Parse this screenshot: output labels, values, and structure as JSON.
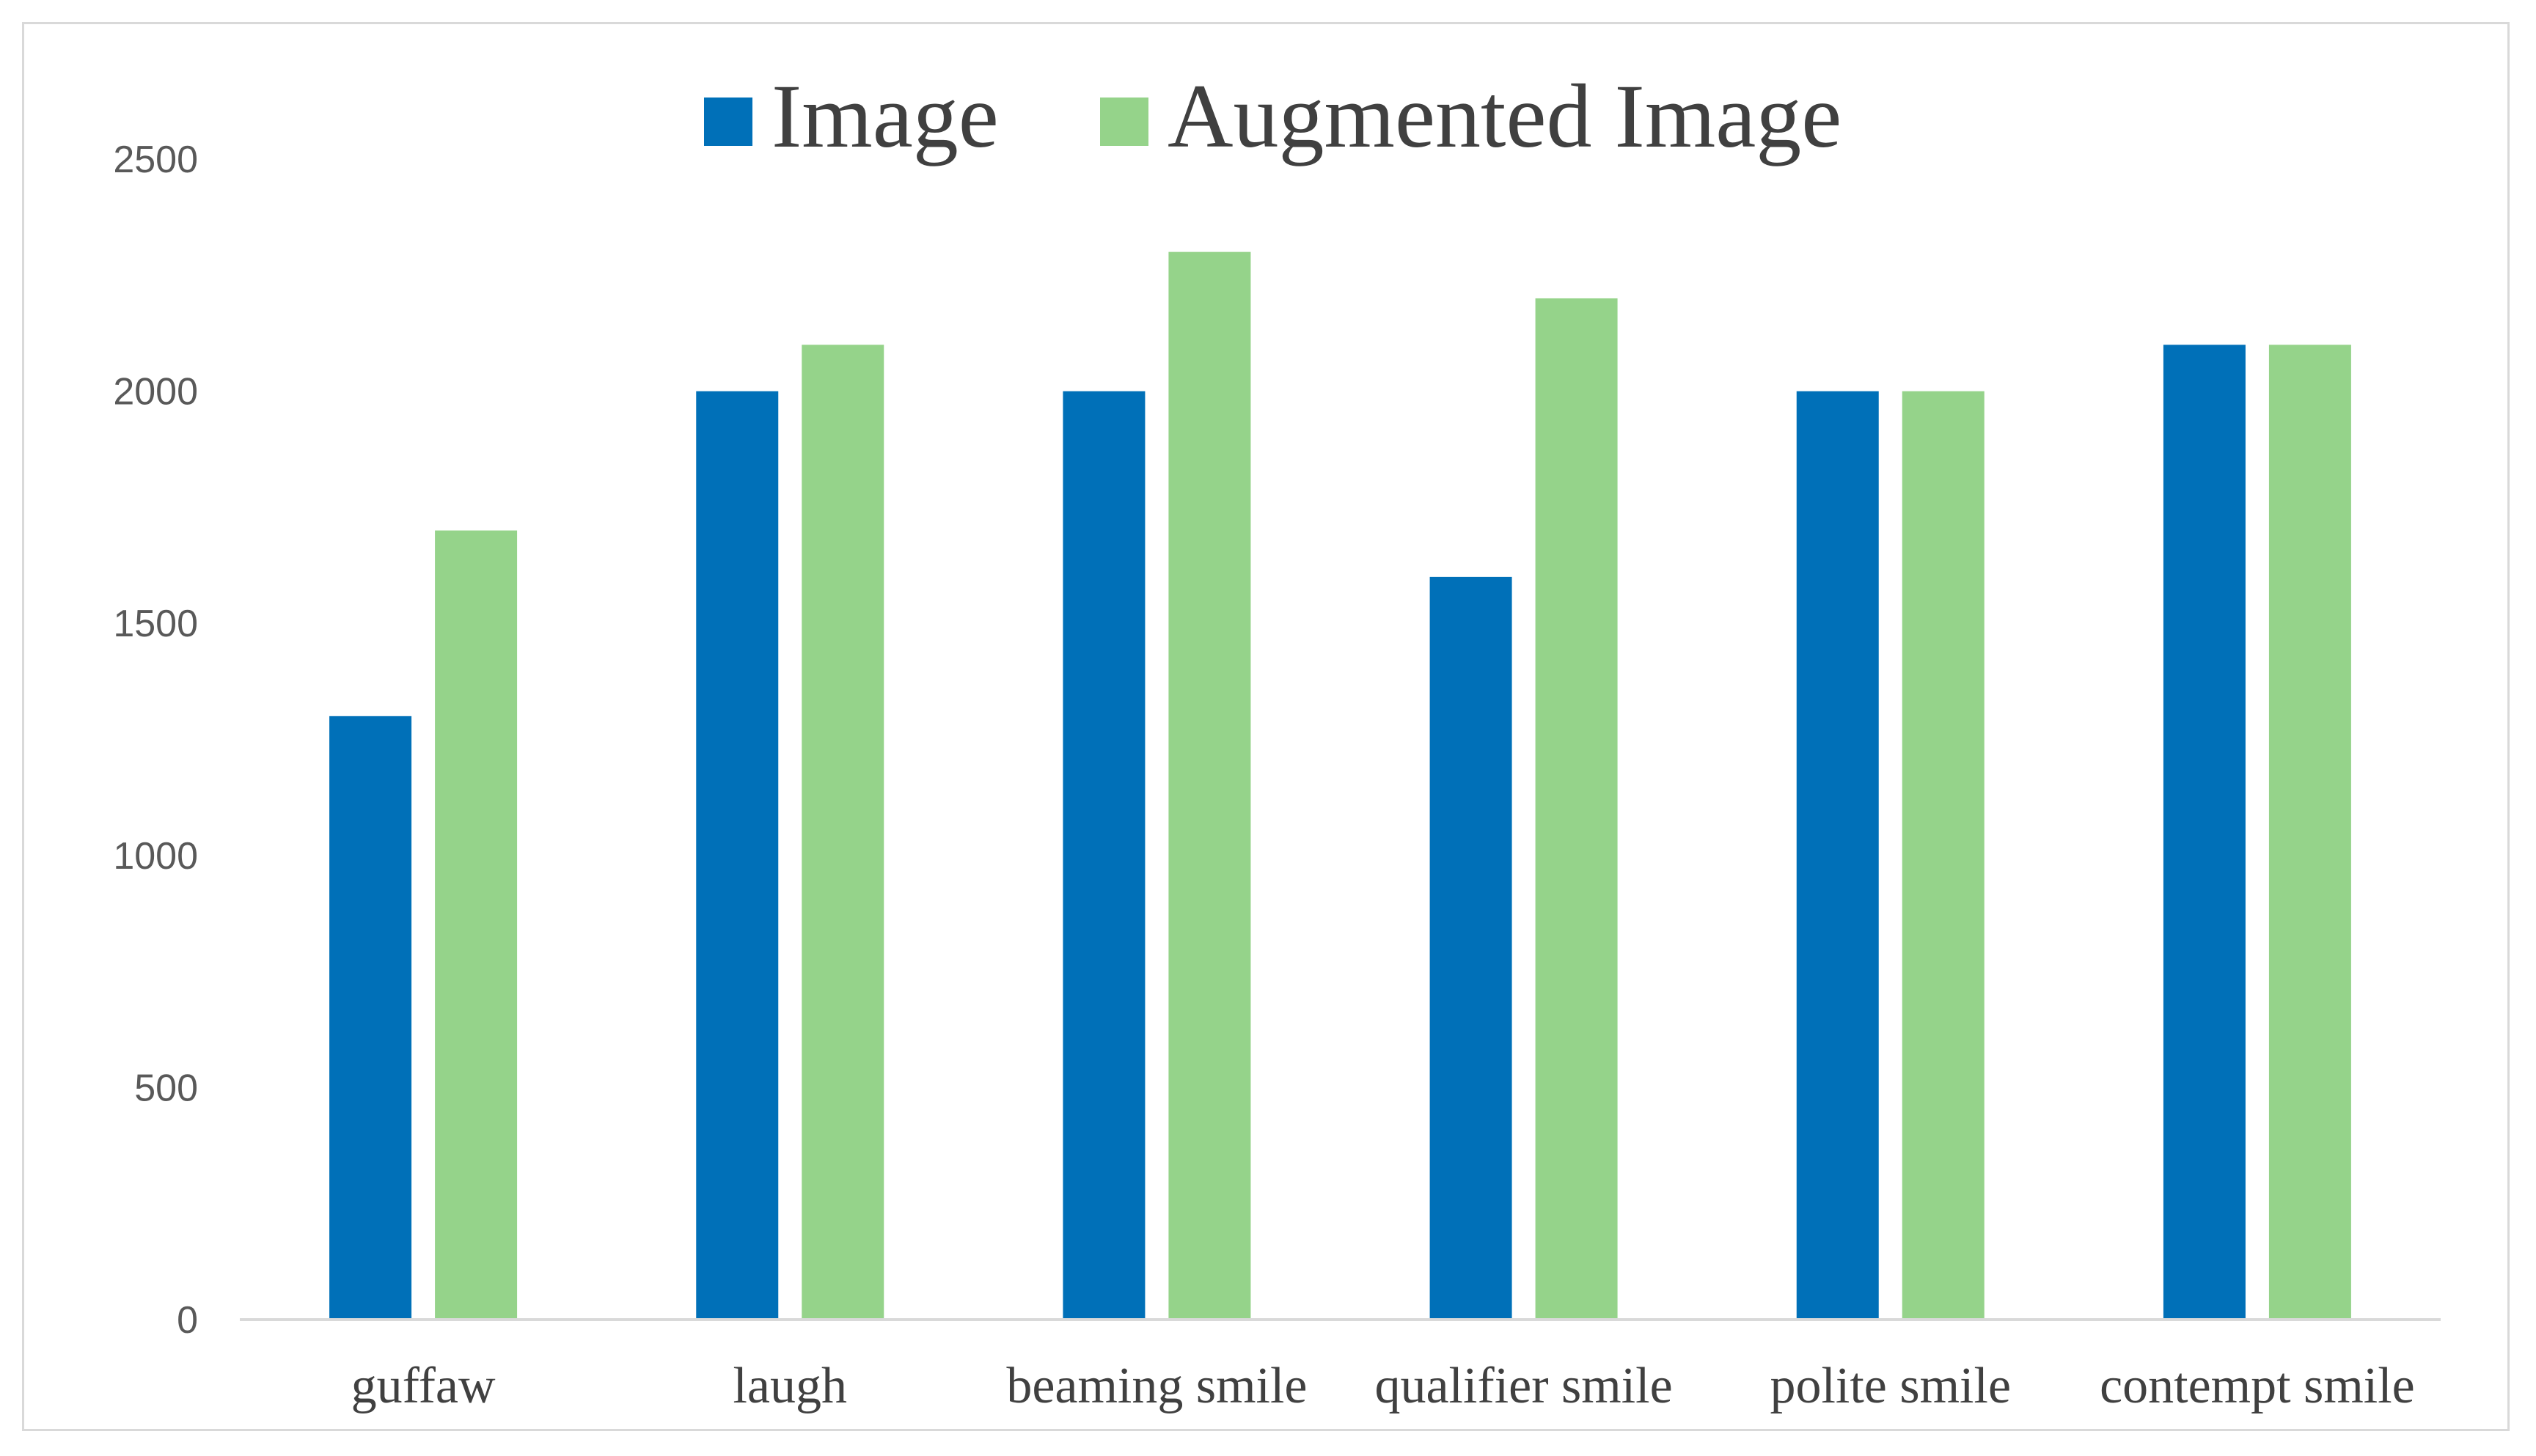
{
  "chart_data": {
    "type": "bar",
    "categories": [
      "guffaw",
      "laugh",
      "beaming smile",
      "qualifier smile",
      "polite smile",
      "contempt smile"
    ],
    "series": [
      {
        "name": "Image",
        "color": "#0070b8",
        "values": [
          1300,
          2000,
          2000,
          1600,
          2000,
          2100
        ]
      },
      {
        "name": "Augmented Image",
        "color": "#95d38a",
        "values": [
          1700,
          2100,
          2300,
          2200,
          2000,
          2100
        ]
      }
    ],
    "ylim": [
      0,
      2500
    ],
    "yticks": [
      0,
      500,
      1000,
      1500,
      2000,
      2500
    ],
    "grid": false,
    "legend_position": "top-center"
  }
}
